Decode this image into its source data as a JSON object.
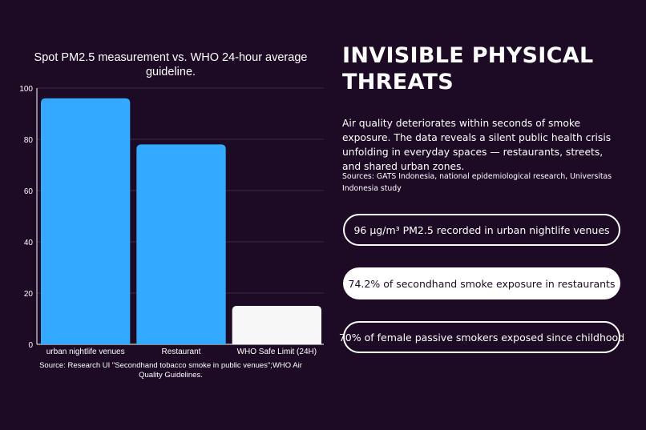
{
  "chart_data": {
    "type": "bar",
    "title": "Spot PM2.5 measurement vs. WHO 24-hour average guideline.",
    "categories": [
      "urban nightlife venues",
      "Restaurant",
      "WHO Safe Limit (24H)"
    ],
    "values": [
      96,
      78,
      15
    ],
    "bar_colors": [
      "#33aaff",
      "#33aaff",
      "#f7f7f7"
    ],
    "ylim": [
      0,
      100
    ],
    "yticks": [
      0,
      20,
      40,
      60,
      80,
      100
    ],
    "grid": true,
    "source": "Source: Research UI \"Secondhand tobacco smoke in public venues\";WHO Air Quality Guidelines."
  },
  "panel": {
    "heading": "INVISIBLE PHYSICAL THREATS",
    "body": "Air quality deteriorates within seconds of smoke exposure. The data reveals a silent public health crisis unfolding in everyday spaces — restaurants, streets, and shared urban zones.",
    "sources": "Sources: GATS Indonesia, national epidemiological research, Universitas Indonesia study",
    "pills": [
      "96 μg/m³ PM2.5 recorded in urban nightlife venues",
      "74.2% of secondhand smoke exposure in restaurants",
      "70% of female passive smokers exposed since childhood"
    ]
  },
  "colors": {
    "background": "#1d0b25",
    "bar_accent": "#33aaff",
    "bar_light": "#f7f7f7",
    "text": "#ffffff"
  }
}
